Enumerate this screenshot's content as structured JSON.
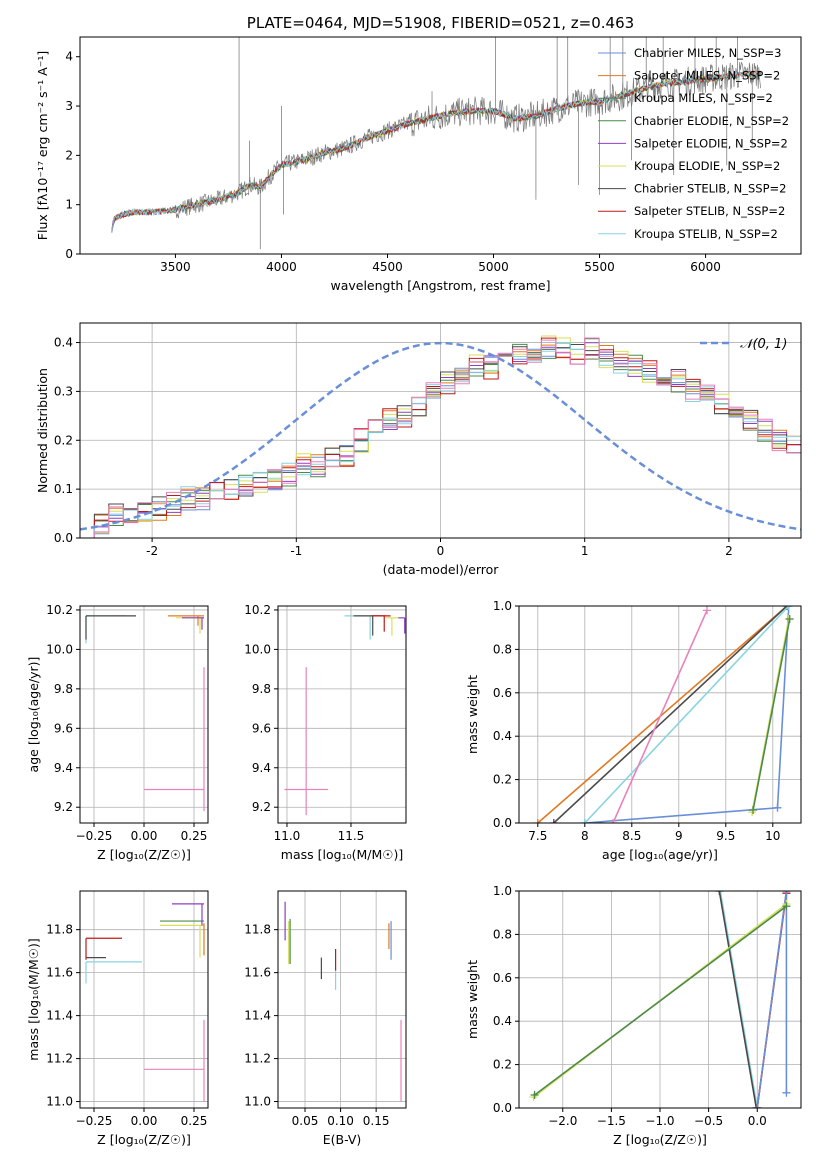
{
  "colors": {
    "blue": "#6a8fd8",
    "orange": "#e07a22",
    "green": "#4c8a4c",
    "purple": "#8f3fc2",
    "yellow": "#d6e05a",
    "gray": "#4a4a4a",
    "red": "#c01818",
    "cyan": "#88d4e0",
    "pink": "#e882bc"
  },
  "chart_data": [
    {
      "type": "line",
      "title": "PLATE=0464, MJD=51908, FIBERID=0521, z=0.463",
      "xlabel": "wavelength [Angstrom, rest frame]",
      "ylabel": "Flux [fλ10⁻¹⁷ erg cm⁻² s⁻¹ A⁻¹]",
      "xlim": [
        3050,
        6450
      ],
      "ylim": [
        0,
        4.4
      ],
      "xticks": [
        3500,
        4000,
        4500,
        5000,
        5500,
        6000
      ],
      "yticks": [
        0,
        1,
        2,
        3,
        4
      ],
      "grid": false,
      "legend_position": "top-right",
      "series": [
        {
          "name": "Chabrier MILES, N_SSP=3",
          "color_key": "blue"
        },
        {
          "name": "Salpeter MILES, N_SSP=2",
          "color_key": "orange"
        },
        {
          "name": "Kroupa MILES, N_SSP=2",
          "color_key": "green"
        },
        {
          "name": "Chabrier ELODIE, N_SSP=2",
          "color_key": "green"
        },
        {
          "name": "Salpeter ELODIE, N_SSP=2",
          "color_key": "purple"
        },
        {
          "name": "Kroupa ELODIE, N_SSP=2",
          "color_key": "yellow"
        },
        {
          "name": "Chabrier STELIB, N_SSP=2",
          "color_key": "gray"
        },
        {
          "name": "Salpeter STELIB, N_SSP=2",
          "color_key": "red"
        },
        {
          "name": "Kroupa STELIB, N_SSP=2",
          "color_key": "cyan"
        }
      ],
      "model_continuum": {
        "x": [
          3200,
          3210,
          3250,
          3300,
          3400,
          3500,
          3600,
          3700,
          3800,
          3850,
          3900,
          3950,
          4000,
          4100,
          4200,
          4300,
          4400,
          4500,
          4600,
          4700,
          4800,
          4900,
          5000,
          5100,
          5200,
          5300,
          5400,
          5500,
          5600,
          5700,
          5800,
          5900,
          6000,
          6100,
          6200,
          6260
        ],
        "y": [
          0.5,
          0.7,
          0.8,
          0.85,
          0.85,
          0.9,
          1.0,
          1.1,
          1.25,
          1.4,
          1.35,
          1.6,
          1.8,
          1.9,
          2.05,
          2.15,
          2.35,
          2.5,
          2.65,
          2.75,
          2.85,
          2.9,
          2.9,
          2.75,
          2.8,
          2.95,
          3.05,
          3.1,
          3.2,
          3.35,
          3.45,
          3.5,
          3.55,
          3.6,
          3.65,
          3.65
        ]
      },
      "data_spectrum": {
        "x_start": 3200,
        "x_end": 6260,
        "spikes": [
          {
            "x": 3800,
            "y": 4.4
          },
          {
            "x": 3850,
            "y": 2.3
          },
          {
            "x": 3900,
            "y": 0.1
          },
          {
            "x": 4000,
            "y": 3.0
          },
          {
            "x": 4010,
            "y": 0.8
          },
          {
            "x": 4710,
            "y": 3.3
          },
          {
            "x": 5010,
            "y": 4.4
          },
          {
            "x": 5200,
            "y": 1.1
          },
          {
            "x": 5300,
            "y": 4.4
          },
          {
            "x": 5350,
            "y": 4.4
          },
          {
            "x": 5400,
            "y": 1.4
          },
          {
            "x": 5500,
            "y": 1.2
          },
          {
            "x": 5550,
            "y": 4.4
          },
          {
            "x": 5610,
            "y": 4.4
          },
          {
            "x": 5650,
            "y": 1.9
          },
          {
            "x": 5720,
            "y": 4.4
          },
          {
            "x": 5800,
            "y": 4.4
          },
          {
            "x": 5850,
            "y": 1.6
          },
          {
            "x": 5950,
            "y": 4.4
          },
          {
            "x": 6050,
            "y": 4.4
          },
          {
            "x": 6100,
            "y": 1.8
          },
          {
            "x": 6150,
            "y": 4.4
          },
          {
            "x": 6220,
            "y": 2.2
          }
        ]
      }
    },
    {
      "type": "bar",
      "xlabel": "(data-model)/error",
      "ylabel": "Normed distribution",
      "xlim": [
        -2.5,
        2.5
      ],
      "ylim": [
        0,
        0.44
      ],
      "xticks": [
        -2,
        -1,
        0,
        1,
        2
      ],
      "yticks": [
        0.0,
        0.1,
        0.2,
        0.3,
        0.4
      ],
      "grid": true,
      "legend_position": "top-right",
      "legend_label": "𝒩(0, 1)",
      "bin_width": 0.1,
      "histogram_reference": {
        "bin_start": -2.5,
        "values": [
          0.02,
          0.03,
          0.05,
          0.05,
          0.05,
          0.06,
          0.07,
          0.08,
          0.08,
          0.09,
          0.1,
          0.11,
          0.11,
          0.12,
          0.13,
          0.15,
          0.15,
          0.16,
          0.17,
          0.2,
          0.22,
          0.24,
          0.25,
          0.27,
          0.3,
          0.32,
          0.33,
          0.35,
          0.35,
          0.36,
          0.38,
          0.38,
          0.39,
          0.39,
          0.38,
          0.39,
          0.37,
          0.36,
          0.35,
          0.34,
          0.32,
          0.32,
          0.3,
          0.29,
          0.27,
          0.26,
          0.24,
          0.22,
          0.2,
          0.19,
          0.17,
          0.16,
          0.14,
          0.13,
          0.12,
          0.11,
          0.1,
          0.09,
          0.08,
          0.08,
          0.08,
          0.07,
          0.07,
          0.07,
          0.06,
          0.06,
          0.06,
          0.06,
          0.06,
          0.05,
          0.05,
          0.05
        ]
      },
      "normal_curve": {
        "mean": 0,
        "sigma": 1,
        "x_range": [
          -2.5,
          2.5
        ]
      }
    },
    {
      "type": "scatter",
      "xlabel": "Z [log₁₀(Z/Z☉)]",
      "ylabel": "age  [log₁₀(age/yr)]",
      "xlim": [
        -0.32,
        0.32
      ],
      "ylim": [
        9.12,
        10.22
      ],
      "xticks": [
        -0.25,
        0.0,
        0.25
      ],
      "xticklabels": [
        "−0.25",
        "0.00",
        "0.25"
      ],
      "yticks": [
        9.2,
        9.4,
        9.6,
        9.8,
        10.0,
        10.2
      ],
      "grid": true,
      "points": [
        {
          "x": 0.3,
          "y": 9.29,
          "xerr": [
            0.3,
            0.0
          ],
          "yerr": [
            0.11,
            0.62
          ],
          "color_key": "pink"
        },
        {
          "x": -0.29,
          "y": 10.17,
          "xerr": [
            0.0,
            0.2
          ],
          "yerr": [
            0.14,
            0.0
          ],
          "color_key": "cyan"
        },
        {
          "x": -0.29,
          "y": 10.17,
          "xerr": [
            0.0,
            0.25
          ],
          "yerr": [
            0.12,
            0.0
          ],
          "color_key": "gray"
        },
        {
          "x": 0.27,
          "y": 10.17,
          "xerr": [
            0.15,
            0.03
          ],
          "yerr": [
            0.05,
            0.0
          ],
          "color_key": "orange"
        },
        {
          "x": 0.28,
          "y": 10.16,
          "xerr": [
            0.12,
            0.02
          ],
          "yerr": [
            0.08,
            0.0
          ],
          "color_key": "yellow"
        },
        {
          "x": 0.29,
          "y": 10.16,
          "xerr": [
            0.1,
            0.01
          ],
          "yerr": [
            0.06,
            0.0
          ],
          "color_key": "purple"
        }
      ]
    },
    {
      "type": "scatter",
      "xlabel": "mass [log₁₀(M/M☉)]",
      "xlim": [
        10.93,
        11.93
      ],
      "ylim": [
        9.12,
        10.22
      ],
      "xticks": [
        11.0,
        11.5
      ],
      "xticklabels": [
        "11.0",
        "11.5"
      ],
      "yticks": [
        9.2,
        9.4,
        9.6,
        9.8,
        10.0,
        10.2
      ],
      "grid": true,
      "points": [
        {
          "x": 11.15,
          "y": 9.29,
          "xerr": [
            0.17,
            0.17
          ],
          "yerr": [
            0.13,
            0.62
          ],
          "color_key": "pink"
        },
        {
          "x": 11.65,
          "y": 10.17,
          "xerr": [
            0.2,
            0.1
          ],
          "yerr": [
            0.12,
            0.0
          ],
          "color_key": "cyan"
        },
        {
          "x": 11.67,
          "y": 10.17,
          "xerr": [
            0.15,
            0.1
          ],
          "yerr": [
            0.1,
            0.0
          ],
          "color_key": "gray"
        },
        {
          "x": 11.76,
          "y": 10.17,
          "xerr": [
            0.1,
            0.05
          ],
          "yerr": [
            0.08,
            0.0
          ],
          "color_key": "red"
        },
        {
          "x": 11.82,
          "y": 10.16,
          "xerr": [
            0.05,
            0.05
          ],
          "yerr": [
            0.09,
            0.0
          ],
          "color_key": "yellow"
        },
        {
          "x": 11.92,
          "y": 10.16,
          "xerr": [
            0.05,
            0.0
          ],
          "yerr": [
            0.08,
            0.0
          ],
          "color_key": "purple"
        }
      ]
    },
    {
      "type": "line",
      "xlabel": "age  [log₁₀(age/yr)]",
      "ylabel": "mass weight",
      "xlim": [
        7.3,
        10.3
      ],
      "ylim": [
        0,
        1.0
      ],
      "xticks": [
        7.5,
        8.0,
        8.5,
        9.0,
        9.5,
        10.0
      ],
      "yticks": [
        0.0,
        0.2,
        0.4,
        0.6,
        0.8,
        1.0
      ],
      "grid": true,
      "series": [
        {
          "color_key": "blue",
          "x": [
            8.0,
            10.05,
            10.17
          ],
          "y": [
            0.0,
            0.07,
            1.0
          ]
        },
        {
          "color_key": "orange",
          "x": [
            7.5,
            10.15
          ],
          "y": [
            0.0,
            1.0
          ]
        },
        {
          "color_key": "gray",
          "x": [
            7.67,
            10.15
          ],
          "y": [
            0.0,
            1.0
          ]
        },
        {
          "color_key": "cyan",
          "x": [
            8.0,
            10.17
          ],
          "y": [
            0.0,
            1.0
          ]
        },
        {
          "color_key": "pink",
          "x": [
            8.3,
            9.3
          ],
          "y": [
            0.0,
            0.98
          ]
        },
        {
          "color_key": "yellow",
          "x": [
            9.78,
            10.17
          ],
          "y": [
            0.05,
            0.94
          ]
        },
        {
          "color_key": "green",
          "x": [
            9.79,
            10.18
          ],
          "y": [
            0.06,
            0.94
          ]
        }
      ]
    },
    {
      "type": "scatter",
      "xlabel": "Z [log₁₀(Z/Z☉)]",
      "ylabel": "mass [log₁₀(M/M☉)]",
      "xlim": [
        -0.32,
        0.32
      ],
      "ylim": [
        10.97,
        11.98
      ],
      "xticks": [
        -0.25,
        0.0,
        0.25
      ],
      "xticklabels": [
        "−0.25",
        "0.00",
        "0.25"
      ],
      "yticks": [
        11.0,
        11.2,
        11.4,
        11.6,
        11.8
      ],
      "grid": true,
      "points": [
        {
          "x": 0.3,
          "y": 11.15,
          "xerr": [
            0.3,
            0.0
          ],
          "yerr": [
            0.15,
            0.23
          ],
          "color_key": "pink"
        },
        {
          "x": -0.29,
          "y": 11.65,
          "xerr": [
            0.0,
            0.28
          ],
          "yerr": [
            0.1,
            0.0
          ],
          "color_key": "cyan"
        },
        {
          "x": -0.29,
          "y": 11.67,
          "xerr": [
            0.0,
            0.1
          ],
          "yerr": [
            0.0,
            0.0
          ],
          "color_key": "gray"
        },
        {
          "x": -0.29,
          "y": 11.76,
          "xerr": [
            0.0,
            0.18
          ],
          "yerr": [
            0.1,
            0.0
          ],
          "color_key": "red"
        },
        {
          "x": 0.28,
          "y": 11.82,
          "xerr": [
            0.2,
            0.02
          ],
          "yerr": [
            0.15,
            0.0
          ],
          "color_key": "yellow"
        },
        {
          "x": 0.28,
          "y": 11.84,
          "xerr": [
            0.2,
            0.02
          ],
          "yerr": [
            0.0,
            0.0
          ],
          "color_key": "green"
        },
        {
          "x": 0.29,
          "y": 11.92,
          "xerr": [
            0.15,
            0.01
          ],
          "yerr": [
            0.1,
            0.0
          ],
          "color_key": "purple"
        },
        {
          "x": 0.3,
          "y": 11.78,
          "xerr": [
            0.0,
            0.0
          ],
          "yerr": [
            0.1,
            0.05
          ],
          "color_key": "orange"
        }
      ]
    },
    {
      "type": "scatter",
      "xlabel": "E(B-V)",
      "xlim": [
        0.012,
        0.192
      ],
      "ylim": [
        10.97,
        11.98
      ],
      "xticks": [
        0.05,
        0.1,
        0.15
      ],
      "xticklabels": [
        "0.05",
        "0.10",
        "0.15"
      ],
      "yticks": [
        11.0,
        11.2,
        11.4,
        11.6,
        11.8
      ],
      "grid": true,
      "points": [
        {
          "x": 0.185,
          "y": 11.15,
          "yerr": [
            0.15,
            0.23
          ],
          "color_key": "pink"
        },
        {
          "x": 0.022,
          "y": 11.82,
          "yerr": [
            0.07,
            0.11
          ],
          "color_key": "purple"
        },
        {
          "x": 0.029,
          "y": 11.75,
          "yerr": [
            0.11,
            0.1
          ],
          "color_key": "green"
        },
        {
          "x": 0.027,
          "y": 11.74,
          "yerr": [
            0.1,
            0.1
          ],
          "color_key": "yellow"
        },
        {
          "x": 0.073,
          "y": 11.62,
          "yerr": [
            0.05,
            0.05
          ],
          "color_key": "gray"
        },
        {
          "x": 0.093,
          "y": 11.57,
          "yerr": [
            0.05,
            0.05
          ],
          "color_key": "cyan"
        },
        {
          "x": 0.093,
          "y": 11.66,
          "yerr": [
            0.05,
            0.05
          ],
          "color_key": "red"
        },
        {
          "x": 0.168,
          "y": 11.77,
          "yerr": [
            0.06,
            0.06
          ],
          "color_key": "orange"
        },
        {
          "x": 0.171,
          "y": 11.75,
          "yerr": [
            0.09,
            0.09
          ],
          "color_key": "blue"
        }
      ]
    },
    {
      "type": "line",
      "xlabel": "Z [log₁₀(Z/Z☉)]",
      "ylabel": "mass weight",
      "xlim": [
        -2.45,
        0.45
      ],
      "ylim": [
        0,
        1.0
      ],
      "xticks": [
        -2.0,
        -1.5,
        -1.0,
        -0.5,
        0.0
      ],
      "xticklabels": [
        "−2.0",
        "−1.5",
        "−1.0",
        "−0.5",
        "0.0"
      ],
      "yticks": [
        0.0,
        0.2,
        0.4,
        0.6,
        0.8,
        1.0
      ],
      "grid": true,
      "series": [
        {
          "color_key": "cyan",
          "x": [
            -0.38,
            0.0
          ],
          "y": [
            1.0,
            0.0
          ]
        },
        {
          "color_key": "gray",
          "x": [
            -0.39,
            -0.01
          ],
          "y": [
            1.0,
            0.0
          ]
        },
        {
          "color_key": "orange",
          "x": [
            0.0,
            0.3
          ],
          "y": [
            0.0,
            1.0
          ]
        },
        {
          "color_key": "red",
          "x": [
            0.0,
            0.3
          ],
          "y": [
            0.0,
            0.99
          ]
        },
        {
          "color_key": "blue",
          "x": [
            0.3,
            0.3,
            0.0
          ],
          "y": [
            0.07,
            1.0,
            0.0
          ]
        },
        {
          "color_key": "yellow",
          "x": [
            -2.3,
            0.3
          ],
          "y": [
            0.05,
            0.94
          ]
        },
        {
          "color_key": "green",
          "x": [
            -2.29,
            0.3
          ],
          "y": [
            0.06,
            0.93
          ]
        }
      ]
    }
  ]
}
